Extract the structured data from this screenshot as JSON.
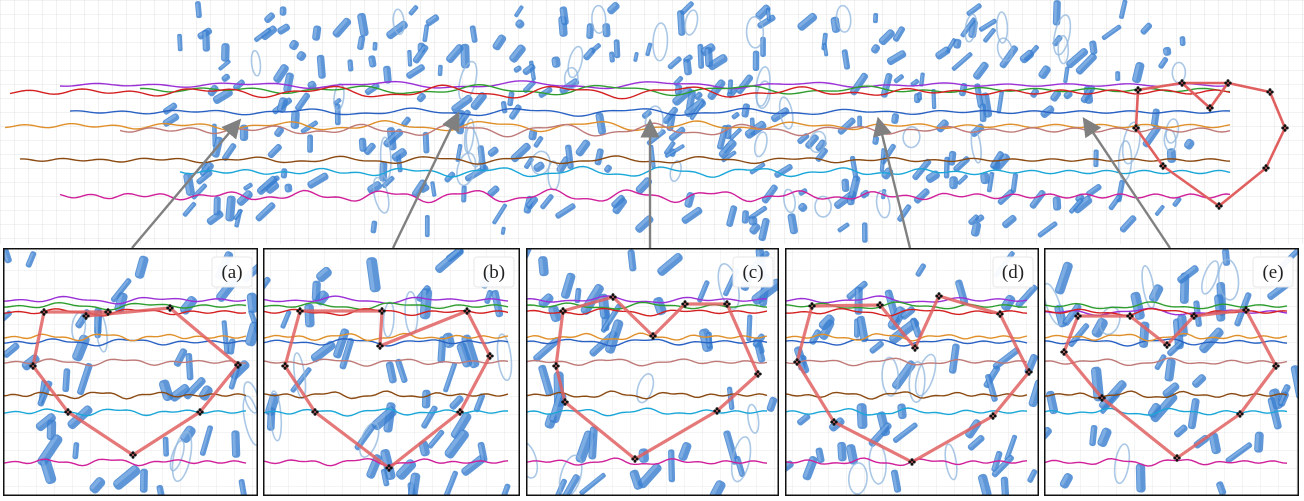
{
  "figure": {
    "panels": [
      {
        "id": "a",
        "label": "(a)"
      },
      {
        "id": "b",
        "label": "(b)"
      },
      {
        "id": "c",
        "label": "(c)"
      },
      {
        "id": "d",
        "label": "(d)"
      },
      {
        "id": "e",
        "label": "(e)"
      }
    ],
    "colors": {
      "grid": "#dcdcdc",
      "obstacle": "#3a7fcf",
      "obstacle_ring": "#8fb5de",
      "formation": "#e06060",
      "arrow": "#808080",
      "trajectories": [
        "#9b30d6",
        "#2f9e2f",
        "#d42020",
        "#2a62c4",
        "#e0902a",
        "#bf7a78",
        "#8b4a12",
        "#1aa7d8",
        "#d0209a"
      ]
    }
  }
}
